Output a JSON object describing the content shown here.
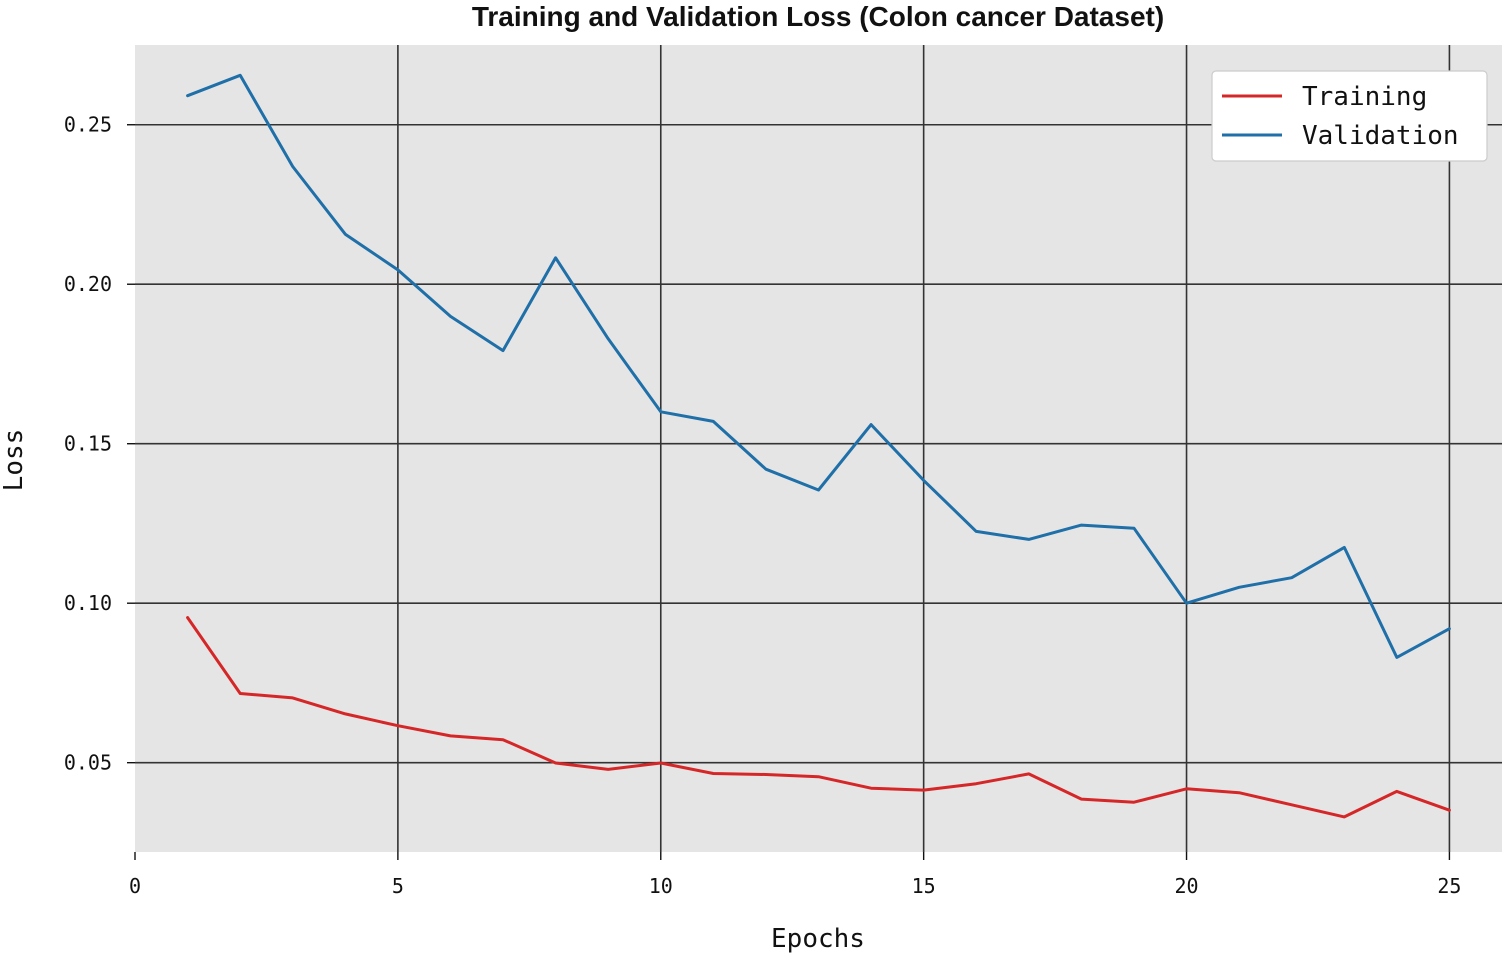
{
  "chart_data": {
    "type": "line",
    "title": "Training and Validation Loss (Colon cancer Dataset)",
    "xlabel": "Epochs",
    "ylabel": "Loss",
    "xlim": [
      0,
      26
    ],
    "ylim": [
      0.022,
      0.275
    ],
    "xticks": [
      0,
      5,
      10,
      15,
      20,
      25
    ],
    "yticks": [
      0.05,
      0.1,
      0.15,
      0.2,
      0.25
    ],
    "xtick_labels": [
      "0",
      "5",
      "10",
      "15",
      "20",
      "25"
    ],
    "ytick_labels": [
      "0.05",
      "0.10",
      "0.15",
      "0.20",
      "0.25"
    ],
    "grid": true,
    "legend_position": "top-right",
    "plot_background": "#e5e5e5",
    "x": [
      1,
      2,
      3,
      4,
      5,
      6,
      7,
      8,
      9,
      10,
      11,
      12,
      13,
      14,
      15,
      16,
      17,
      18,
      19,
      20,
      21,
      22,
      23,
      24,
      25
    ],
    "series": [
      {
        "name": "Training",
        "color": "#d62728",
        "values": [
          0.0955,
          0.0717,
          0.0703,
          0.0653,
          0.0616,
          0.0584,
          0.0572,
          0.0499,
          0.0479,
          0.0499,
          0.0466,
          0.0463,
          0.0456,
          0.042,
          0.0414,
          0.0434,
          0.0465,
          0.0386,
          0.0376,
          0.0418,
          0.0406,
          0.0368,
          0.033,
          0.041,
          0.0351
        ]
      },
      {
        "name": "Validation",
        "color": "#1f6fa8",
        "values": [
          0.2591,
          0.2655,
          0.2369,
          0.2157,
          0.2045,
          0.1899,
          0.1792,
          0.2083,
          0.1829,
          0.16,
          0.157,
          0.142,
          0.1355,
          0.156,
          0.1385,
          0.1225,
          0.12,
          0.1245,
          0.1235,
          0.1,
          0.105,
          0.108,
          0.1175,
          0.083,
          0.092
        ]
      }
    ]
  }
}
